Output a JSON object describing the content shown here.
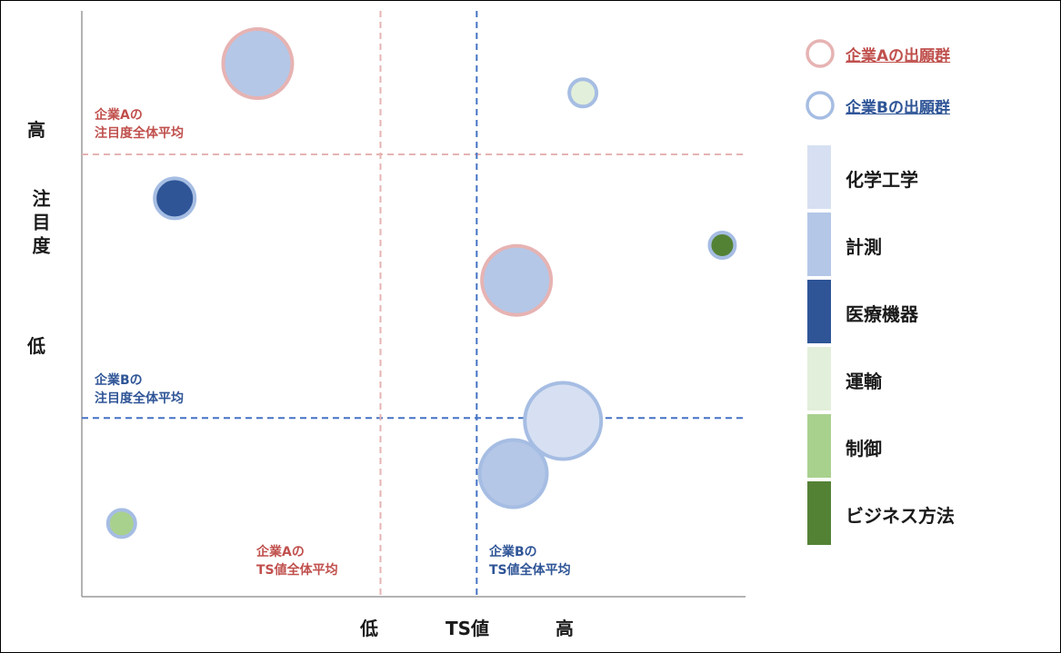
{
  "chart_data": {
    "type": "scatter",
    "xlabel": "TS値",
    "x_low_label": "低",
    "x_high_label": "高",
    "ylabel": "注目度",
    "y_low_label": "低",
    "y_high_label": "高",
    "xlim": [
      0,
      100
    ],
    "ylim": [
      0,
      100
    ],
    "series": [
      {
        "name": "企業Aの出願群",
        "ring_color": "#e6b3b3"
      },
      {
        "name": "企業Bの出願群",
        "ring_color": "#a6bde3"
      }
    ],
    "categories": [
      {
        "name": "化学工学",
        "color": "#d6e0f2"
      },
      {
        "name": "計測",
        "color": "#b4c7e7"
      },
      {
        "name": "医療機器",
        "color": "#2f5597"
      },
      {
        "name": "運輸",
        "color": "#e2efda"
      },
      {
        "name": "制御",
        "color": "#a9d18e"
      },
      {
        "name": "ビジネス方法",
        "color": "#548235"
      }
    ],
    "points": [
      {
        "series": 0,
        "category": "計測",
        "x": 26.5,
        "y": 91,
        "size": 38
      },
      {
        "series": 1,
        "category": "運輸",
        "x": 75.5,
        "y": 86,
        "size": 15
      },
      {
        "series": 1,
        "category": "医療機器",
        "x": 14,
        "y": 68,
        "size": 22
      },
      {
        "series": 1,
        "category": "ビジネス方法",
        "x": 96.5,
        "y": 60,
        "size": 14
      },
      {
        "series": 0,
        "category": "計測",
        "x": 65.5,
        "y": 54,
        "size": 38
      },
      {
        "series": 1,
        "category": "化学工学",
        "x": 72.5,
        "y": 30,
        "size": 42
      },
      {
        "series": 1,
        "category": "計測",
        "x": 65,
        "y": 21,
        "size": 37
      },
      {
        "series": 1,
        "category": "制御",
        "x": 6,
        "y": 12.5,
        "size": 15
      }
    ],
    "reference_lines": [
      {
        "orientation": "horizontal",
        "value": 75.5,
        "series": 0,
        "label": [
          "企業Aの",
          "注目度全体平均"
        ],
        "color": "#e6b3b3",
        "text_color": "#c0504d"
      },
      {
        "orientation": "horizontal",
        "value": 30.5,
        "series": 1,
        "label": [
          "企業Bの",
          "注目度全体平均"
        ],
        "color": "#4472c4",
        "text_color": "#2f5597"
      },
      {
        "orientation": "vertical",
        "value": 45,
        "series": 0,
        "label": [
          "企業Aの",
          "TS値全体平均"
        ],
        "color": "#e6b3b3",
        "text_color": "#c0504d"
      },
      {
        "orientation": "vertical",
        "value": 59.5,
        "series": 1,
        "label": [
          "企業Bの",
          "TS値全体平均"
        ],
        "color": "#4472c4",
        "text_color": "#2f5597"
      }
    ],
    "legend_position": "right",
    "grid": false
  }
}
